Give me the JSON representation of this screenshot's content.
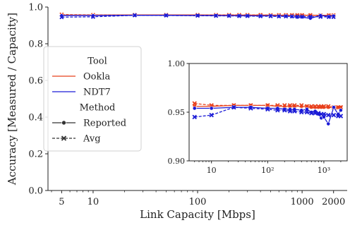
{
  "chart_data": {
    "type": "line",
    "xlabel": "Link Capacity [Mbps]",
    "ylabel": "Accuracy [Measured / Capacity]",
    "xscale": "log",
    "xlim": [
      3.7,
      2700
    ],
    "ylim": [
      0.0,
      1.0
    ],
    "xticks": [
      5,
      10,
      100,
      1000,
      2000
    ],
    "xtick_labels": [
      "5",
      "10",
      "100",
      "1000",
      "2000"
    ],
    "yticks": [
      0.0,
      0.2,
      0.4,
      0.6,
      0.8,
      1.0
    ],
    "ytick_labels": [
      "0.0",
      "0.2",
      "0.4",
      "0.6",
      "0.8",
      "1.0"
    ],
    "grid": false,
    "legend": {
      "placement": "center-left",
      "entries": [
        {
          "label": "Tool",
          "kind": "header"
        },
        {
          "label": "Ookla",
          "kind": "line",
          "color": "#e8401c",
          "dash": "solid"
        },
        {
          "label": "NDT7",
          "kind": "line",
          "color": "#1a1ad6",
          "dash": "solid"
        },
        {
          "label": "Method",
          "kind": "header"
        },
        {
          "label": "Reported",
          "kind": "marker",
          "marker": "circle",
          "dash": "solid"
        },
        {
          "label": "Avg",
          "kind": "marker",
          "marker": "x",
          "dash": "dashed"
        }
      ]
    },
    "x": [
      5,
      10,
      25,
      50,
      100,
      150,
      200,
      250,
      300,
      400,
      500,
      600,
      700,
      800,
      900,
      1000,
      1200,
      1500,
      1800,
      2000
    ],
    "series": [
      {
        "name": "Ookla",
        "method": "Reported",
        "color": "#e8401c",
        "dash": "solid",
        "marker": "circle",
        "values": [
          0.956,
          0.956,
          0.957,
          0.957,
          0.957,
          0.956,
          0.956,
          0.956,
          0.956,
          0.956,
          0.956,
          0.955,
          0.955,
          0.955,
          0.955,
          0.955,
          0.955,
          0.955,
          0.955,
          0.955
        ]
      },
      {
        "name": "Ookla",
        "method": "Avg",
        "color": "#e8401c",
        "dash": "dashed",
        "marker": "x",
        "values": [
          0.959,
          0.957,
          0.957,
          0.957,
          0.957,
          0.957,
          0.957,
          0.957,
          0.957,
          0.957,
          0.956,
          0.956,
          0.956,
          0.956,
          0.956,
          0.956,
          0.956,
          0.955,
          0.955,
          0.955
        ]
      },
      {
        "name": "NDT7",
        "method": "Reported",
        "color": "#1a1ad6",
        "dash": "solid",
        "marker": "circle",
        "values": [
          0.954,
          0.954,
          0.955,
          0.955,
          0.954,
          0.954,
          0.953,
          0.953,
          0.953,
          0.952,
          0.953,
          0.95,
          0.951,
          0.948,
          0.944,
          0.945,
          0.938,
          0.955,
          0.948,
          0.952
        ]
      },
      {
        "name": "NDT7",
        "method": "Avg",
        "color": "#1a1ad6",
        "dash": "dashed",
        "marker": "x",
        "values": [
          0.945,
          0.947,
          0.955,
          0.954,
          0.953,
          0.952,
          0.952,
          0.951,
          0.951,
          0.95,
          0.95,
          0.949,
          0.949,
          0.949,
          0.948,
          0.948,
          0.947,
          0.947,
          0.946,
          0.946
        ]
      }
    ],
    "inset": {
      "xscale": "log",
      "xlim": [
        4,
        2600
      ],
      "ylim": [
        0.9,
        1.0
      ],
      "xticks": [
        10,
        100,
        1000
      ],
      "xtick_labels": [
        "10",
        "10²",
        "10³"
      ],
      "yticks": [
        0.9,
        0.95,
        1.0
      ],
      "ytick_labels": [
        "0.90",
        "0.95",
        "1.00"
      ]
    }
  }
}
